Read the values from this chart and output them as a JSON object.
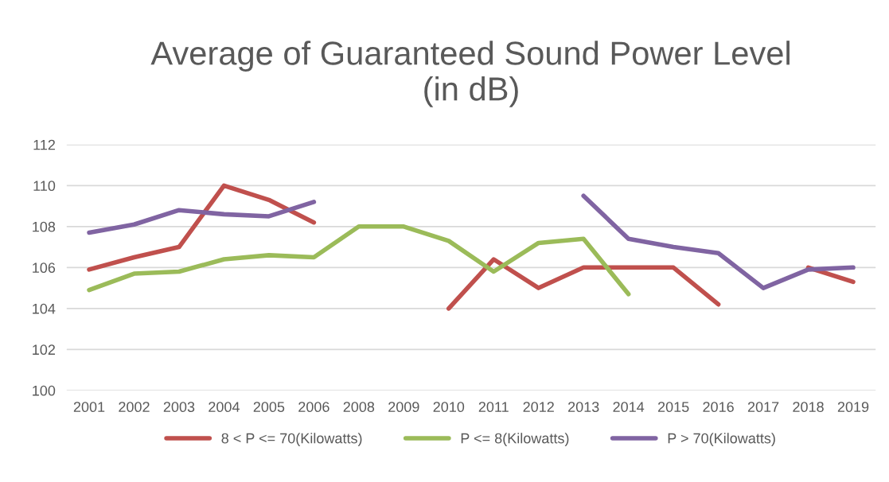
{
  "chart_data": {
    "type": "line",
    "title": "Average of Guaranteed Sound Power Level\n(in dB)",
    "categories": [
      "2001",
      "2002",
      "2003",
      "2004",
      "2005",
      "2006",
      "2008",
      "2009",
      "2010",
      "2011",
      "2012",
      "2013",
      "2014",
      "2015",
      "2016",
      "2017",
      "2018",
      "2019"
    ],
    "series": [
      {
        "name": "8 < P <= 70(Kilowatts)",
        "color": "#c0504d",
        "values": [
          105.9,
          106.5,
          107.0,
          110.0,
          109.3,
          108.2,
          null,
          null,
          104.0,
          106.4,
          105.0,
          106.0,
          106.0,
          106.0,
          104.2,
          null,
          106.0,
          105.3
        ]
      },
      {
        "name": "P <= 8(Kilowatts)",
        "color": "#9bbb59",
        "values": [
          104.9,
          105.7,
          105.8,
          106.4,
          106.6,
          106.5,
          108.0,
          108.0,
          107.3,
          105.8,
          107.2,
          107.4,
          104.7,
          null,
          null,
          null,
          null,
          null
        ]
      },
      {
        "name": "P > 70(Kilowatts)",
        "color": "#8064a2",
        "values": [
          107.7,
          108.1,
          108.8,
          108.6,
          108.5,
          109.2,
          null,
          null,
          null,
          null,
          null,
          109.5,
          107.4,
          107.0,
          106.7,
          105.0,
          105.9,
          106.0
        ]
      }
    ],
    "ylim": [
      100,
      112
    ],
    "yticks": [
      100,
      102,
      104,
      106,
      108,
      110,
      112
    ],
    "grid": "y",
    "legend": "bottom",
    "line_style": "solid",
    "marker": "none"
  }
}
